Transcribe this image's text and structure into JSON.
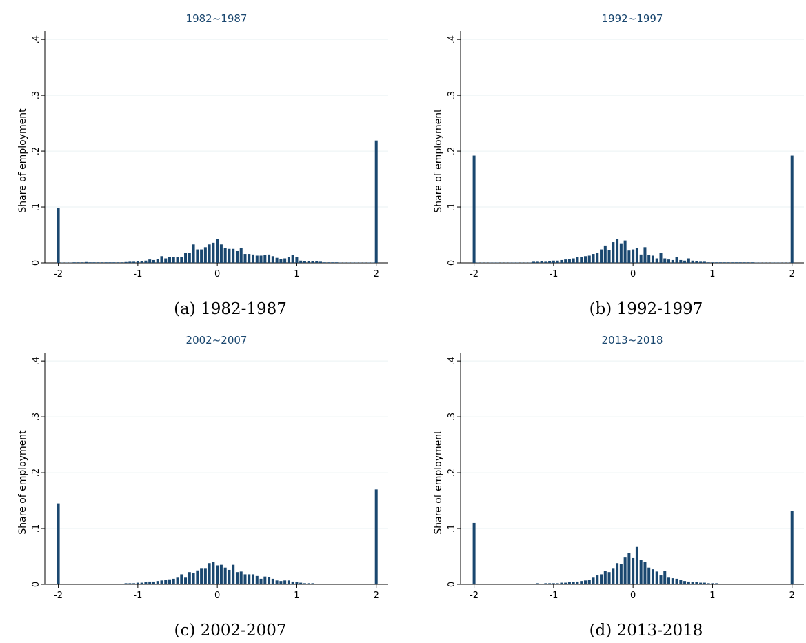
{
  "chart_data": [
    {
      "type": "bar",
      "title": "1982~1987",
      "caption": "(a) 1982-1987",
      "ylabel": "Share of employment",
      "color": "#1a476f",
      "grid": true,
      "xlim": [
        -2.17,
        2.15
      ],
      "xticks": [
        -2,
        -1,
        0,
        1,
        2
      ],
      "ylim": [
        0,
        0.415
      ],
      "yticks": [
        0,
        {
          "value": 0.1,
          "label": ".1"
        },
        {
          "value": 0.2,
          "label": ".2"
        },
        {
          "value": 0.3,
          "label": ".3"
        },
        {
          "value": 0.4,
          "label": ".4"
        }
      ],
      "x": [
        -2,
        -1.95,
        -1.9,
        -1.85,
        -1.8,
        -1.75,
        -1.7,
        -1.65,
        -1.6,
        -1.55,
        -1.5,
        -1.45,
        -1.4,
        -1.35,
        -1.3,
        -1.25,
        -1.2,
        -1.15,
        -1.1,
        -1.05,
        -1,
        -0.95,
        -0.9,
        -0.85,
        -0.8,
        -0.75,
        -0.7,
        -0.65,
        -0.6,
        -0.55,
        -0.5,
        -0.45,
        -0.4,
        -0.35,
        -0.3,
        -0.25,
        -0.2,
        -0.15,
        -0.1,
        -0.05,
        0,
        0.05,
        0.1,
        0.15,
        0.2,
        0.25,
        0.3,
        0.35,
        0.4,
        0.45,
        0.5,
        0.55,
        0.6,
        0.65,
        0.7,
        0.75,
        0.8,
        0.85,
        0.9,
        0.95,
        1,
        1.05,
        1.1,
        1.15,
        1.2,
        1.25,
        1.3,
        1.35,
        1.4,
        1.45,
        1.5,
        1.55,
        1.6,
        1.65,
        1.7,
        1.75,
        1.8,
        1.85,
        1.9,
        1.95,
        2
      ],
      "values": [
        0.098,
        0.0005,
        0.0005,
        0.0005,
        0.001,
        0.001,
        0.001,
        0.0015,
        0.001,
        0.001,
        0.001,
        0.001,
        0.001,
        0.001,
        0.001,
        0.001,
        0.001,
        0.0015,
        0.002,
        0.002,
        0.003,
        0.003,
        0.004,
        0.006,
        0.005,
        0.007,
        0.012,
        0.008,
        0.01,
        0.01,
        0.01,
        0.01,
        0.018,
        0.018,
        0.033,
        0.024,
        0.024,
        0.028,
        0.033,
        0.036,
        0.042,
        0.033,
        0.027,
        0.025,
        0.025,
        0.021,
        0.026,
        0.016,
        0.016,
        0.015,
        0.013,
        0.013,
        0.014,
        0.015,
        0.012,
        0.009,
        0.007,
        0.008,
        0.01,
        0.014,
        0.011,
        0.004,
        0.003,
        0.003,
        0.003,
        0.003,
        0.002,
        0.001,
        0.001,
        0.001,
        0.001,
        0.0005,
        0.0005,
        0.0005,
        0.0005,
        0.0005,
        0.0005,
        0.0005,
        0.0005,
        0.0005,
        0.219
      ]
    },
    {
      "type": "bar",
      "title": "1992~1997",
      "caption": "(b) 1992-1997",
      "ylabel": "Share of employment",
      "color": "#1a476f",
      "grid": true,
      "xlim": [
        -2.17,
        2.15
      ],
      "xticks": [
        -2,
        -1,
        0,
        1,
        2
      ],
      "ylim": [
        0,
        0.415
      ],
      "yticks": [
        0,
        {
          "value": 0.1,
          "label": ".1"
        },
        {
          "value": 0.2,
          "label": ".2"
        },
        {
          "value": 0.3,
          "label": ".3"
        },
        {
          "value": 0.4,
          "label": ".4"
        }
      ],
      "x": [
        -2,
        -1.95,
        -1.9,
        -1.85,
        -1.8,
        -1.75,
        -1.7,
        -1.65,
        -1.6,
        -1.55,
        -1.5,
        -1.45,
        -1.4,
        -1.35,
        -1.3,
        -1.25,
        -1.2,
        -1.15,
        -1.1,
        -1.05,
        -1,
        -0.95,
        -0.9,
        -0.85,
        -0.8,
        -0.75,
        -0.7,
        -0.65,
        -0.6,
        -0.55,
        -0.5,
        -0.45,
        -0.4,
        -0.35,
        -0.3,
        -0.25,
        -0.2,
        -0.15,
        -0.1,
        -0.05,
        0,
        0.05,
        0.1,
        0.15,
        0.2,
        0.25,
        0.3,
        0.35,
        0.4,
        0.45,
        0.5,
        0.55,
        0.6,
        0.65,
        0.7,
        0.75,
        0.8,
        0.85,
        0.9,
        0.95,
        1,
        1.05,
        1.1,
        1.15,
        1.2,
        1.25,
        1.3,
        1.35,
        1.4,
        1.45,
        1.5,
        1.55,
        1.6,
        1.65,
        1.7,
        1.75,
        1.8,
        1.85,
        1.9,
        1.95,
        2
      ],
      "values": [
        0.192,
        0.0005,
        0.0005,
        0.0005,
        0.0005,
        0.0005,
        0.0005,
        0.0005,
        0.0005,
        0.0005,
        0.0005,
        0.0005,
        0.0005,
        0.0005,
        0.0005,
        0.002,
        0.002,
        0.003,
        0.002,
        0.003,
        0.004,
        0.004,
        0.005,
        0.006,
        0.007,
        0.008,
        0.01,
        0.011,
        0.012,
        0.013,
        0.016,
        0.018,
        0.024,
        0.031,
        0.023,
        0.037,
        0.042,
        0.035,
        0.04,
        0.022,
        0.024,
        0.026,
        0.015,
        0.028,
        0.014,
        0.013,
        0.008,
        0.018,
        0.008,
        0.006,
        0.005,
        0.01,
        0.005,
        0.004,
        0.008,
        0.004,
        0.003,
        0.002,
        0.002,
        0.001,
        0.001,
        0.001,
        0.001,
        0.001,
        0.001,
        0.001,
        0.001,
        0.001,
        0.001,
        0.001,
        0.001,
        0.0005,
        0.0005,
        0.0005,
        0.0005,
        0.0005,
        0.0005,
        0.0005,
        0.0005,
        0.0005,
        0.192
      ]
    },
    {
      "type": "bar",
      "title": "2002~2007",
      "caption": "(c) 2002-2007",
      "ylabel": "Share of employment",
      "color": "#1a476f",
      "grid": true,
      "xlim": [
        -2.17,
        2.15
      ],
      "xticks": [
        -2,
        -1,
        0,
        1,
        2
      ],
      "ylim": [
        0,
        0.415
      ],
      "yticks": [
        0,
        {
          "value": 0.1,
          "label": ".1"
        },
        {
          "value": 0.2,
          "label": ".2"
        },
        {
          "value": 0.3,
          "label": ".3"
        },
        {
          "value": 0.4,
          "label": ".4"
        }
      ],
      "x": [
        -2,
        -1.95,
        -1.9,
        -1.85,
        -1.8,
        -1.75,
        -1.7,
        -1.65,
        -1.6,
        -1.55,
        -1.5,
        -1.45,
        -1.4,
        -1.35,
        -1.3,
        -1.25,
        -1.2,
        -1.15,
        -1.1,
        -1.05,
        -1,
        -0.95,
        -0.9,
        -0.85,
        -0.8,
        -0.75,
        -0.7,
        -0.65,
        -0.6,
        -0.55,
        -0.5,
        -0.45,
        -0.4,
        -0.35,
        -0.3,
        -0.25,
        -0.2,
        -0.15,
        -0.1,
        -0.05,
        0,
        0.05,
        0.1,
        0.15,
        0.2,
        0.25,
        0.3,
        0.35,
        0.4,
        0.45,
        0.5,
        0.55,
        0.6,
        0.65,
        0.7,
        0.75,
        0.8,
        0.85,
        0.9,
        0.95,
        1,
        1.05,
        1.1,
        1.15,
        1.2,
        1.25,
        1.3,
        1.35,
        1.4,
        1.45,
        1.5,
        1.55,
        1.6,
        1.65,
        1.7,
        1.75,
        1.8,
        1.85,
        1.9,
        1.95,
        2
      ],
      "values": [
        0.145,
        0.0005,
        0.0005,
        0.0005,
        0.0005,
        0.0005,
        0.0005,
        0.0005,
        0.0005,
        0.0005,
        0.0005,
        0.0005,
        0.0005,
        0.0005,
        0.0005,
        0.001,
        0.001,
        0.002,
        0.002,
        0.002,
        0.003,
        0.003,
        0.004,
        0.005,
        0.005,
        0.006,
        0.007,
        0.008,
        0.009,
        0.01,
        0.012,
        0.018,
        0.012,
        0.022,
        0.02,
        0.025,
        0.028,
        0.028,
        0.038,
        0.04,
        0.034,
        0.035,
        0.03,
        0.026,
        0.035,
        0.022,
        0.023,
        0.018,
        0.018,
        0.018,
        0.015,
        0.01,
        0.014,
        0.013,
        0.01,
        0.007,
        0.006,
        0.007,
        0.007,
        0.005,
        0.004,
        0.003,
        0.002,
        0.002,
        0.002,
        0.001,
        0.001,
        0.001,
        0.001,
        0.001,
        0.001,
        0.0005,
        0.0005,
        0.0005,
        0.0005,
        0.0005,
        0.0005,
        0.0005,
        0.0005,
        0.0005,
        0.17
      ]
    },
    {
      "type": "bar",
      "title": "2013~2018",
      "caption": "(d) 2013-2018",
      "ylabel": "Share of employment",
      "color": "#1a476f",
      "grid": true,
      "xlim": [
        -2.17,
        2.15
      ],
      "xticks": [
        -2,
        -1,
        0,
        1,
        2
      ],
      "ylim": [
        0,
        0.415
      ],
      "yticks": [
        0,
        {
          "value": 0.1,
          "label": ".1"
        },
        {
          "value": 0.2,
          "label": ".2"
        },
        {
          "value": 0.3,
          "label": ".3"
        },
        {
          "value": 0.4,
          "label": ".4"
        }
      ],
      "x": [
        -2,
        -1.95,
        -1.9,
        -1.85,
        -1.8,
        -1.75,
        -1.7,
        -1.65,
        -1.6,
        -1.55,
        -1.5,
        -1.45,
        -1.4,
        -1.35,
        -1.3,
        -1.25,
        -1.2,
        -1.15,
        -1.1,
        -1.05,
        -1,
        -0.95,
        -0.9,
        -0.85,
        -0.8,
        -0.75,
        -0.7,
        -0.65,
        -0.6,
        -0.55,
        -0.5,
        -0.45,
        -0.4,
        -0.35,
        -0.3,
        -0.25,
        -0.2,
        -0.15,
        -0.1,
        -0.05,
        0,
        0.05,
        0.1,
        0.15,
        0.2,
        0.25,
        0.3,
        0.35,
        0.4,
        0.45,
        0.5,
        0.55,
        0.6,
        0.65,
        0.7,
        0.75,
        0.8,
        0.85,
        0.9,
        0.95,
        1,
        1.05,
        1.1,
        1.15,
        1.2,
        1.25,
        1.3,
        1.35,
        1.4,
        1.45,
        1.5,
        1.55,
        1.6,
        1.65,
        1.7,
        1.75,
        1.8,
        1.85,
        1.9,
        1.95,
        2
      ],
      "values": [
        0.11,
        0.0005,
        0.0005,
        0.0005,
        0.0005,
        0.0005,
        0.0005,
        0.0005,
        0.0005,
        0.0005,
        0.0005,
        0.0005,
        0.0005,
        0.001,
        0.0005,
        0.001,
        0.002,
        0.001,
        0.002,
        0.002,
        0.002,
        0.002,
        0.003,
        0.003,
        0.004,
        0.004,
        0.005,
        0.006,
        0.007,
        0.008,
        0.012,
        0.016,
        0.018,
        0.024,
        0.022,
        0.028,
        0.038,
        0.036,
        0.048,
        0.056,
        0.047,
        0.067,
        0.044,
        0.04,
        0.03,
        0.027,
        0.023,
        0.016,
        0.024,
        0.012,
        0.011,
        0.01,
        0.008,
        0.006,
        0.005,
        0.004,
        0.004,
        0.003,
        0.003,
        0.002,
        0.002,
        0.002,
        0.001,
        0.001,
        0.001,
        0.001,
        0.001,
        0.001,
        0.001,
        0.001,
        0.001,
        0.0005,
        0.0005,
        0.0005,
        0.0005,
        0.0005,
        0.0005,
        0.0005,
        0.0005,
        0.0005,
        0.132
      ]
    }
  ]
}
